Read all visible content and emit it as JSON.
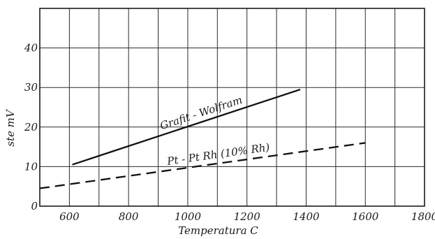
{
  "chart_data": {
    "type": "line",
    "title": "",
    "xlabel": "Temperatura C",
    "ylabel": "ste mV",
    "xlim": [
      500,
      1800
    ],
    "ylim": [
      0,
      50
    ],
    "grid": true,
    "x_ticks": [
      600,
      800,
      1000,
      1200,
      1400,
      1600,
      1800
    ],
    "y_ticks": [
      0,
      10,
      20,
      30,
      40
    ],
    "series": [
      {
        "name": "Grafit - Wolfram",
        "style": "solid",
        "x": [
          610,
          1380
        ],
        "y": [
          10.5,
          29.5
        ]
      },
      {
        "name": "Pt - Pt Rh (10% Rh)",
        "style": "dashed",
        "x": [
          500,
          1600
        ],
        "y": [
          4.5,
          16
        ]
      }
    ]
  }
}
